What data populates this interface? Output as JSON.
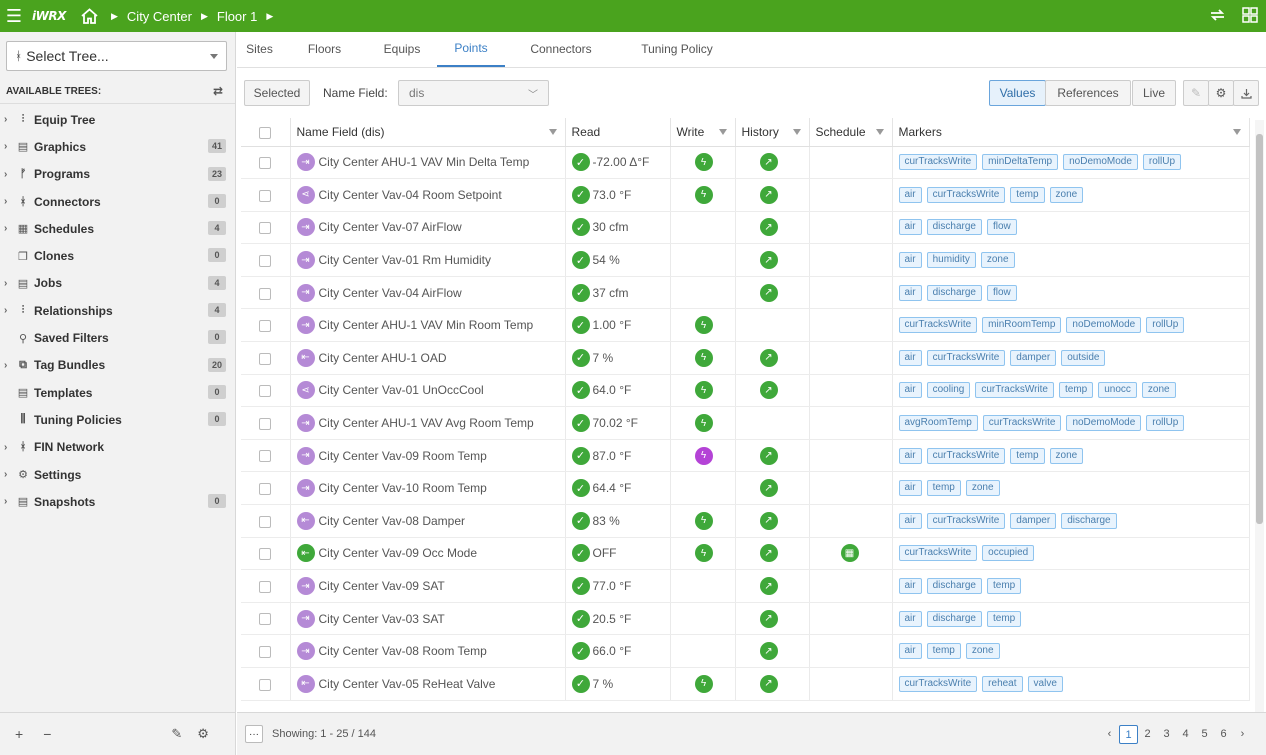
{
  "topbar": {
    "logo": "iWRX",
    "breadcrumbs": [
      "City Center",
      "Floor 1"
    ]
  },
  "sidebar": {
    "select_tree": "Select Tree...",
    "available_trees": "AVAILABLE TREES:",
    "items": [
      {
        "label": "Equip Tree",
        "icon": "⫶",
        "count": "",
        "chev": true
      },
      {
        "label": "Graphics",
        "icon": "▤",
        "count": "41",
        "chev": true
      },
      {
        "label": "Programs",
        "icon": "ᚠ",
        "count": "23",
        "chev": true
      },
      {
        "label": "Connectors",
        "icon": "ᚼ",
        "count": "0",
        "chev": true
      },
      {
        "label": "Schedules",
        "icon": "▦",
        "count": "4",
        "chev": true
      },
      {
        "label": "Clones",
        "icon": "❐",
        "count": "0",
        "chev": false
      },
      {
        "label": "Jobs",
        "icon": "▤",
        "count": "4",
        "chev": true
      },
      {
        "label": "Relationships",
        "icon": "⫶",
        "count": "4",
        "chev": true
      },
      {
        "label": "Saved Filters",
        "icon": "⚲",
        "count": "0",
        "chev": false
      },
      {
        "label": "Tag Bundles",
        "icon": "⧉",
        "count": "20",
        "chev": true
      },
      {
        "label": "Templates",
        "icon": "▤",
        "count": "0",
        "chev": false
      },
      {
        "label": "Tuning Policies",
        "icon": "⫼",
        "count": "0",
        "chev": false
      },
      {
        "label": "FIN Network",
        "icon": "ᚼ",
        "count": "",
        "chev": true
      },
      {
        "label": "Settings",
        "icon": "⚙",
        "count": "",
        "chev": true
      },
      {
        "label": "Snapshots",
        "icon": "▤",
        "count": "0",
        "chev": true
      }
    ]
  },
  "tabs": [
    "Sites",
    "Floors",
    "Equips",
    "Points",
    "Connectors",
    "Tuning Policy"
  ],
  "active_tab": "Points",
  "toolbar": {
    "selected": "Selected",
    "name_field_label": "Name Field:",
    "name_field_value": "dis",
    "values": "Values",
    "references": "References",
    "live": "Live"
  },
  "columns": [
    "Name Field (dis)",
    "Read",
    "Write",
    "History",
    "Schedule",
    "Markers"
  ],
  "rows": [
    {
      "name": "City Center AHU-1 VAV Min Delta Temp",
      "kind": "in",
      "read": "-72.00 Δ°F",
      "write": "green",
      "history": true,
      "schedule": false,
      "markers": [
        "curTracksWrite",
        "minDeltaTemp",
        "noDemoMode",
        "rollUp"
      ]
    },
    {
      "name": "City Center Vav-04 Room Setpoint",
      "kind": "share",
      "read": "73.0 °F",
      "write": "green",
      "history": true,
      "schedule": false,
      "markers": [
        "air",
        "curTracksWrite",
        "temp",
        "zone"
      ]
    },
    {
      "name": "City Center Vav-07 AirFlow",
      "kind": "in",
      "read": "30 cfm",
      "write": "",
      "history": true,
      "schedule": false,
      "markers": [
        "air",
        "discharge",
        "flow"
      ]
    },
    {
      "name": "City Center Vav-01 Rm Humidity",
      "kind": "in",
      "read": "54 %",
      "write": "",
      "history": true,
      "schedule": false,
      "markers": [
        "air",
        "humidity",
        "zone"
      ]
    },
    {
      "name": "City Center Vav-04 AirFlow",
      "kind": "in",
      "read": "37 cfm",
      "write": "",
      "history": true,
      "schedule": false,
      "markers": [
        "air",
        "discharge",
        "flow"
      ]
    },
    {
      "name": "City Center AHU-1 VAV Min Room Temp",
      "kind": "in",
      "read": "1.00 °F",
      "write": "green",
      "history": false,
      "schedule": false,
      "markers": [
        "curTracksWrite",
        "minRoomTemp",
        "noDemoMode",
        "rollUp"
      ]
    },
    {
      "name": "City Center AHU-1 OAD",
      "kind": "out",
      "read": "7 %",
      "write": "green",
      "history": true,
      "schedule": false,
      "markers": [
        "air",
        "curTracksWrite",
        "damper",
        "outside"
      ]
    },
    {
      "name": "City Center Vav-01 UnOccCool",
      "kind": "share",
      "read": "64.0 °F",
      "write": "green",
      "history": true,
      "schedule": false,
      "markers": [
        "air",
        "cooling",
        "curTracksWrite",
        "temp",
        "unocc",
        "zone"
      ]
    },
    {
      "name": "City Center AHU-1 VAV Avg Room Temp",
      "kind": "in",
      "read": "70.02 °F",
      "write": "green",
      "history": false,
      "schedule": false,
      "markers": [
        "avgRoomTemp",
        "curTracksWrite",
        "noDemoMode",
        "rollUp"
      ]
    },
    {
      "name": "City Center Vav-09 Room Temp",
      "kind": "in",
      "read": "87.0 °F",
      "write": "purple",
      "history": true,
      "schedule": false,
      "markers": [
        "air",
        "curTracksWrite",
        "temp",
        "zone"
      ]
    },
    {
      "name": "City Center Vav-10 Room Temp",
      "kind": "in",
      "read": "64.4 °F",
      "write": "",
      "history": true,
      "schedule": false,
      "markers": [
        "air",
        "temp",
        "zone"
      ]
    },
    {
      "name": "City Center Vav-08 Damper",
      "kind": "out",
      "read": "83 %",
      "write": "green",
      "history": true,
      "schedule": false,
      "markers": [
        "air",
        "curTracksWrite",
        "damper",
        "discharge"
      ]
    },
    {
      "name": "City Center Vav-09 Occ Mode",
      "kind": "outgreen",
      "read": "OFF",
      "write": "green",
      "history": true,
      "schedule": true,
      "markers": [
        "curTracksWrite",
        "occupied"
      ]
    },
    {
      "name": "City Center Vav-09 SAT",
      "kind": "in",
      "read": "77.0 °F",
      "write": "",
      "history": true,
      "schedule": false,
      "markers": [
        "air",
        "discharge",
        "temp"
      ]
    },
    {
      "name": "City Center Vav-03 SAT",
      "kind": "in",
      "read": "20.5 °F",
      "write": "",
      "history": true,
      "schedule": false,
      "markers": [
        "air",
        "discharge",
        "temp"
      ]
    },
    {
      "name": "City Center Vav-08 Room Temp",
      "kind": "in",
      "read": "66.0 °F",
      "write": "",
      "history": true,
      "schedule": false,
      "markers": [
        "air",
        "temp",
        "zone"
      ]
    },
    {
      "name": "City Center Vav-05 ReHeat Valve",
      "kind": "out",
      "read": "7 %",
      "write": "green",
      "history": true,
      "schedule": false,
      "markers": [
        "curTracksWrite",
        "reheat",
        "valve"
      ]
    }
  ],
  "footer": {
    "showing": "Showing: 1 - 25 / 144",
    "pages": [
      "1",
      "2",
      "3",
      "4",
      "5",
      "6"
    ],
    "current_page": "1"
  },
  "colors": {
    "brand_green": "#4aa31e",
    "accent_blue": "#3c80c6",
    "point_purple": "#b58ad6",
    "ok_green": "#3fa83a",
    "write_purple": "#b443d6"
  }
}
